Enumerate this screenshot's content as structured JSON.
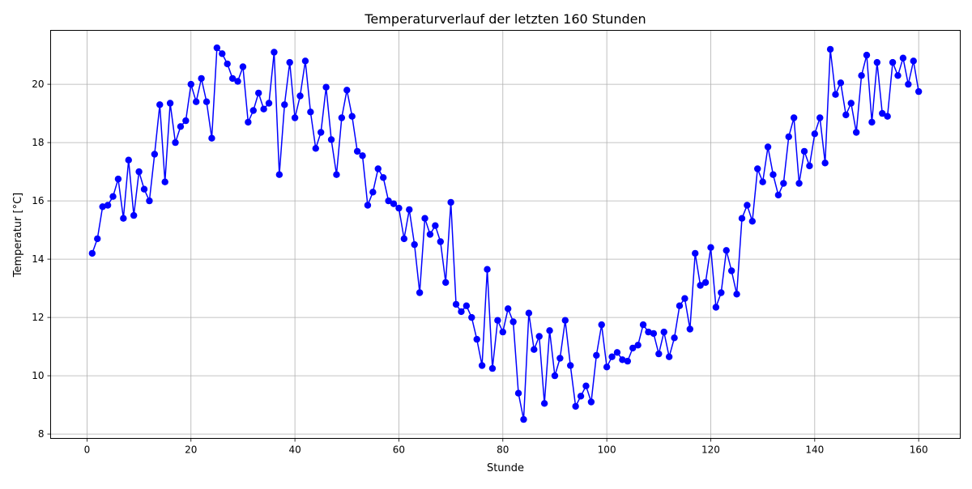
{
  "chart_data": {
    "type": "line",
    "title": "Temperaturverlauf der letzten 160 Stunden",
    "xlabel": "Stunde",
    "ylabel": "Temperatur [°C]",
    "xlim": [
      -7,
      168
    ],
    "ylim": [
      7.85,
      21.85
    ],
    "xticks": [
      0,
      20,
      40,
      60,
      80,
      100,
      120,
      140,
      160
    ],
    "yticks": [
      8,
      10,
      12,
      14,
      16,
      18,
      20
    ],
    "grid": true,
    "color": "#0000ff",
    "marker": "circle",
    "series": [
      {
        "x": [
          1,
          2,
          3,
          4,
          5,
          6,
          7,
          8,
          9,
          10,
          11,
          12,
          13,
          14,
          15,
          16,
          17,
          18,
          19,
          20,
          21,
          22,
          23,
          24,
          25,
          26,
          27,
          28,
          29,
          30,
          31,
          32,
          33,
          34,
          35,
          36,
          37,
          38,
          39,
          40,
          41,
          42,
          43,
          44,
          45,
          46,
          47,
          48,
          49,
          50,
          51,
          52,
          53,
          54,
          55,
          56,
          57,
          58,
          59,
          60,
          61,
          62,
          63,
          64,
          65,
          66,
          67,
          68,
          69,
          70,
          71,
          72,
          73,
          74,
          75,
          76,
          77,
          78,
          79,
          80,
          81,
          82,
          83,
          84,
          85,
          86,
          87,
          88,
          89,
          90,
          91,
          92,
          93,
          94,
          95,
          96,
          97,
          98,
          99,
          100,
          101,
          102,
          103,
          104,
          105,
          106,
          107,
          108,
          109,
          110,
          111,
          112,
          113,
          114,
          115,
          116,
          117,
          118,
          119,
          120,
          121,
          122,
          123,
          124,
          125,
          126,
          127,
          128,
          129,
          130,
          131,
          132,
          133,
          134,
          135,
          136,
          137,
          138,
          139,
          140,
          141,
          142,
          143,
          144,
          145,
          146,
          147,
          148,
          149,
          150,
          151,
          152,
          153,
          154,
          155,
          156,
          157,
          158,
          159,
          160
        ],
        "values": [
          14.2,
          14.7,
          15.8,
          15.85,
          16.15,
          16.75,
          15.4,
          17.4,
          15.5,
          17.0,
          16.4,
          16.0,
          17.6,
          19.3,
          16.65,
          19.35,
          18.0,
          18.55,
          18.75,
          20.0,
          19.4,
          20.2,
          19.4,
          18.15,
          21.25,
          21.05,
          20.7,
          20.2,
          20.1,
          20.6,
          18.7,
          19.1,
          19.7,
          19.15,
          19.35,
          21.1,
          16.9,
          19.3,
          20.75,
          18.85,
          19.6,
          20.8,
          19.05,
          17.8,
          18.35,
          19.9,
          18.1,
          16.9,
          18.85,
          19.8,
          18.9,
          17.7,
          17.55,
          15.85,
          16.3,
          17.1,
          16.8,
          16.0,
          15.9,
          15.75,
          14.7,
          15.7,
          14.5,
          12.85,
          15.4,
          14.85,
          15.15,
          14.6,
          13.2,
          15.95,
          12.45,
          12.2,
          12.4,
          12.0,
          11.25,
          10.35,
          13.65,
          10.25,
          11.9,
          11.5,
          12.3,
          11.85,
          9.4,
          8.5,
          12.15,
          10.9,
          11.35,
          9.05,
          11.55,
          10.0,
          10.6,
          11.9,
          10.35,
          8.95,
          9.3,
          9.65,
          9.1,
          10.7,
          11.75,
          10.3,
          10.65,
          10.8,
          10.55,
          10.5,
          10.95,
          11.05,
          11.75,
          11.5,
          11.45,
          10.75,
          11.5,
          10.65,
          11.3,
          12.4,
          12.65,
          11.6,
          14.2,
          13.1,
          13.2,
          14.4,
          12.35,
          12.85,
          14.3,
          13.6,
          12.8,
          15.4,
          15.85,
          15.3,
          17.1,
          16.65,
          17.85,
          16.9,
          16.2,
          16.6,
          18.2,
          18.85,
          16.6,
          17.7,
          17.2,
          18.3,
          18.85,
          17.3,
          21.2,
          19.65,
          20.05,
          18.95,
          19.35,
          18.35,
          20.3,
          21.0,
          18.7,
          20.75,
          19.0,
          18.9,
          20.75,
          20.3,
          20.9,
          20.0,
          20.8,
          19.75
        ]
      }
    ]
  }
}
